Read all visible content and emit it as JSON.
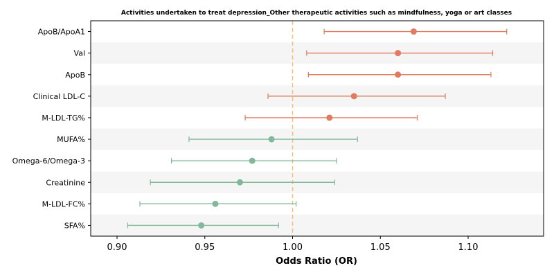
{
  "chart_data": {
    "type": "forest",
    "title": "Activities undertaken to treat depression_Other therapeutic activities such as mindfulness, yoga or art classes",
    "xlabel": "Odds Ratio (OR)",
    "xlim": [
      0.885,
      1.143
    ],
    "xticks": [
      "0.90",
      "0.95",
      "1.00",
      "1.05",
      "1.10"
    ],
    "xtick_values": [
      0.9,
      0.95,
      1.0,
      1.05,
      1.1
    ],
    "reference_line": 1.0,
    "colors": {
      "above_one": "#e07b5f",
      "below_one": "#82b89a",
      "reference": "#f4c07a",
      "band": "#f5f5f5"
    },
    "rows": [
      {
        "label": "ApoB/ApoA1",
        "or": 1.069,
        "ci_low": 1.018,
        "ci_high": 1.122
      },
      {
        "label": "Val",
        "or": 1.06,
        "ci_low": 1.008,
        "ci_high": 1.114
      },
      {
        "label": "ApoB",
        "or": 1.06,
        "ci_low": 1.009,
        "ci_high": 1.113
      },
      {
        "label": "Clinical LDL-C",
        "or": 1.035,
        "ci_low": 0.986,
        "ci_high": 1.087
      },
      {
        "label": "M-LDL-TG%",
        "or": 1.021,
        "ci_low": 0.973,
        "ci_high": 1.071
      },
      {
        "label": "MUFA%",
        "or": 0.988,
        "ci_low": 0.941,
        "ci_high": 1.037
      },
      {
        "label": "Omega-6/Omega-3",
        "or": 0.977,
        "ci_low": 0.931,
        "ci_high": 1.025
      },
      {
        "label": "Creatinine",
        "or": 0.97,
        "ci_low": 0.919,
        "ci_high": 1.024
      },
      {
        "label": "M-LDL-FC%",
        "or": 0.956,
        "ci_low": 0.913,
        "ci_high": 1.002
      },
      {
        "label": "SFA%",
        "or": 0.948,
        "ci_low": 0.906,
        "ci_high": 0.992
      }
    ]
  }
}
